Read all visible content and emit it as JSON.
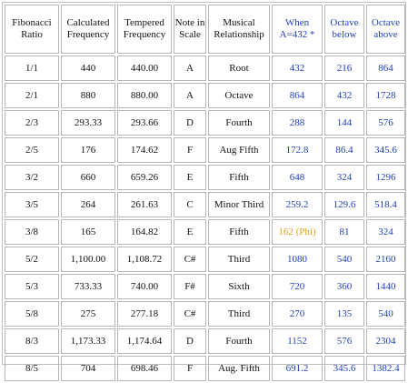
{
  "headers": [
    {
      "text": "Fibonacci Ratio",
      "blue": false
    },
    {
      "text": "Calculated Frequency",
      "blue": false
    },
    {
      "text": "Tempered Frequency",
      "blue": false
    },
    {
      "text": "Note in Scale",
      "blue": false
    },
    {
      "text": "Musical Relationship",
      "blue": false
    },
    {
      "text": "When A=432 *",
      "blue": true
    },
    {
      "text": "Octave below",
      "blue": true
    },
    {
      "text": "Octave above",
      "blue": true
    }
  ],
  "rows": [
    [
      "1/1",
      "440",
      "440.00",
      "A",
      "Root",
      "432",
      "216",
      "864"
    ],
    [
      "2/1",
      "880",
      "880.00",
      "A",
      "Octave",
      "864",
      "432",
      "1728"
    ],
    [
      "2/3",
      "293.33",
      "293.66",
      "D",
      "Fourth",
      "288",
      "144",
      "576"
    ],
    [
      "2/5",
      "176",
      "174.62",
      "F",
      "Aug Fifth",
      "172.8",
      "86.4",
      "345.6"
    ],
    [
      "3/2",
      "660",
      "659.26",
      "E",
      "Fifth",
      "648",
      "324",
      "1296"
    ],
    [
      "3/5",
      "264",
      "261.63",
      "C",
      "Minor Third",
      "259.2",
      "129.6",
      "518.4"
    ],
    [
      "3/8",
      "165",
      "164.82",
      "E",
      "Fifth",
      "162 (Phi)",
      "81",
      "324"
    ],
    [
      "5/2",
      "1,100.00",
      "1,108.72",
      "C#",
      "Third",
      "1080",
      "540",
      "2160"
    ],
    [
      "5/3",
      "733.33",
      "740.00",
      "F#",
      "Sixth",
      "720",
      "360",
      "1440"
    ],
    [
      "5/8",
      "275",
      "277.18",
      "C#",
      "Third",
      "270",
      "135",
      "540"
    ],
    [
      "8/3",
      "1,173.33",
      "1,174.64",
      "D",
      "Fourth",
      "1152",
      "576",
      "2304"
    ],
    [
      "8/5",
      "704",
      "698.46",
      "F",
      "Aug. Fifth",
      "691.2",
      "345.6",
      "1382.4"
    ]
  ],
  "colors": {
    "header_blue": "#1f3fb5",
    "phi_highlight": "#e0a020",
    "border": "#b5b5b5"
  },
  "highlight": {
    "row": 6,
    "col": 5
  }
}
